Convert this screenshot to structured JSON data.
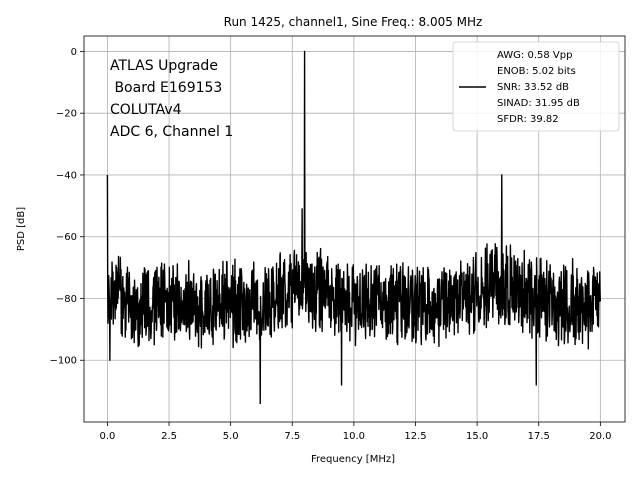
{
  "chart_data": {
    "type": "line",
    "title": "Run 1425, channel1, Sine Freq.: 8.005 MHz",
    "xlabel": "Frequency [MHz]",
    "ylabel": "PSD [dB]",
    "xlim": [
      -0.95,
      21.0
    ],
    "ylim": [
      -120,
      5
    ],
    "xticks": [
      0.0,
      2.5,
      5.0,
      7.5,
      10.0,
      12.5,
      15.0,
      17.5,
      20.0
    ],
    "xtick_labels": [
      "0.0",
      "2.5",
      "5.0",
      "7.5",
      "10.0",
      "12.5",
      "15.0",
      "17.5",
      "20.0"
    ],
    "yticks": [
      0,
      -20,
      -40,
      -60,
      -80,
      -100
    ],
    "ytick_labels": [
      "0",
      "−20",
      "−40",
      "−60",
      "−80",
      "−100"
    ],
    "grid": true,
    "color": "#000000",
    "annotation": [
      "ATLAS Upgrade",
      " Board E169153",
      "COLUTAv4",
      "ADC 6, Channel 1"
    ],
    "legend": {
      "placement": "upper-right",
      "entries": [
        "AWG: 0.58 Vpp",
        "ENOB: 5.02 bits",
        "SNR: 33.52 dB",
        "SINAD: 31.95 dB",
        "SFDR: 39.82"
      ]
    },
    "series": [
      {
        "x_start": 0.0,
        "x_end": 20.0,
        "noise_floor_db": -82,
        "peaks": [
          {
            "x": 0.0,
            "y": -40
          },
          {
            "x": 8.005,
            "y": 0
          },
          {
            "x": 7.9,
            "y": -51
          },
          {
            "x": 16.0,
            "y": -40
          },
          {
            "x": 6.2,
            "y": -114
          },
          {
            "x": 0.1,
            "y": -100
          },
          {
            "x": 9.5,
            "y": -108
          },
          {
            "x": 17.4,
            "y": -108
          }
        ]
      }
    ]
  }
}
